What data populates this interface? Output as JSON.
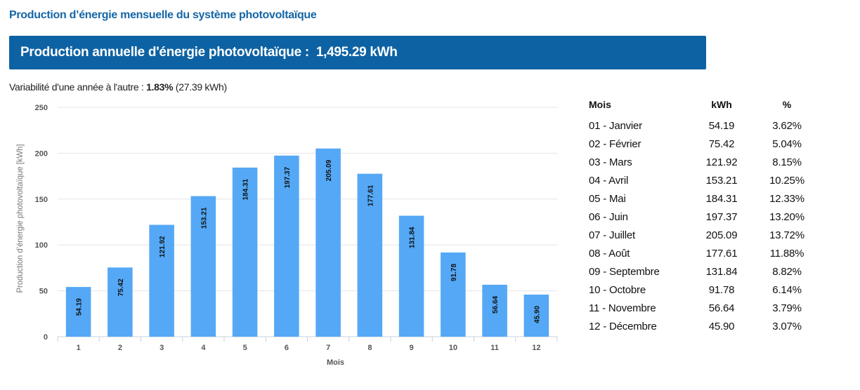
{
  "header": {
    "section_title": "Production d’énergie mensuelle du système photovoltaïque",
    "annual_label": "Production annuelle d'énergie photovoltaïque :",
    "annual_value": "1,495.29 kWh"
  },
  "variability": {
    "label": "Variabilité d'une année à l'autre :",
    "percent": "1.83%",
    "kwh": "(27.39 kWh)"
  },
  "chart_data": {
    "type": "bar",
    "xlabel": "Mois",
    "ylabel": "Production d’énergie photovoltaïque [kWh]",
    "ylim": [
      0,
      250
    ],
    "yticks": [
      0,
      50,
      100,
      150,
      200,
      250
    ],
    "grid": true,
    "categories": [
      "1",
      "2",
      "3",
      "4",
      "5",
      "6",
      "7",
      "8",
      "9",
      "10",
      "11",
      "12"
    ],
    "values": [
      54.19,
      75.42,
      121.92,
      153.21,
      184.31,
      197.37,
      205.09,
      177.61,
      131.84,
      91.78,
      56.64,
      45.9
    ],
    "value_labels": [
      "54.19",
      "75.42",
      "121.92",
      "153.21",
      "184.31",
      "197.37",
      "205.09",
      "177.61",
      "131.84",
      "91.78",
      "56.64",
      "45.90"
    ],
    "bar_color": "#55a8f5"
  },
  "table": {
    "headers": [
      "Mois",
      "kWh",
      "%"
    ],
    "rows": [
      [
        "01 - Janvier",
        "54.19",
        "3.62%"
      ],
      [
        "02 - Février",
        "75.42",
        "5.04%"
      ],
      [
        "03 - Mars",
        "121.92",
        "8.15%"
      ],
      [
        "04 - Avril",
        "153.21",
        "10.25%"
      ],
      [
        "05 - Mai",
        "184.31",
        "12.33%"
      ],
      [
        "06 - Juin",
        "197.37",
        "13.20%"
      ],
      [
        "07 - Juillet",
        "205.09",
        "13.72%"
      ],
      [
        "08 - Août",
        "177.61",
        "11.88%"
      ],
      [
        "09 - Septembre",
        "131.84",
        "8.82%"
      ],
      [
        "10 - Octobre",
        "91.78",
        "6.14%"
      ],
      [
        "11 - Novembre",
        "56.64",
        "3.79%"
      ],
      [
        "12 - Décembre",
        "45.90",
        "3.07%"
      ]
    ]
  },
  "colors": {
    "title_blue": "#1466a6",
    "banner_blue": "#0d62a3",
    "bar_blue": "#55a8f5"
  }
}
